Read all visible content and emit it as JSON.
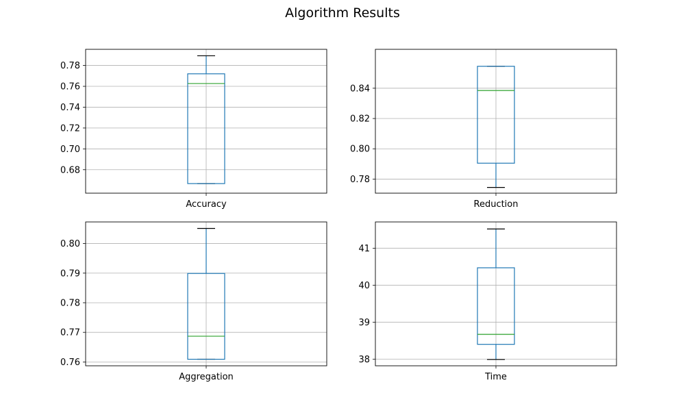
{
  "title": "Algorithm Results",
  "colors": {
    "box": "#1f77b4",
    "median": "#2ca02c",
    "whisker_cap": "#000000",
    "grid": "#b0b0b0",
    "frame": "#000000"
  },
  "chart_data": [
    {
      "type": "box",
      "category": "Accuracy",
      "whislo": 0.6667,
      "q1": 0.6667,
      "median": 0.7627,
      "q3": 0.772,
      "whishi": 0.7893,
      "ylim": [
        0.6575,
        0.7955
      ],
      "yticks": [
        0.68,
        0.7,
        0.72,
        0.74,
        0.76,
        0.78
      ],
      "yticklabels": [
        "0.68",
        "0.70",
        "0.72",
        "0.74",
        "0.76",
        "0.78"
      ],
      "grid": true
    },
    {
      "type": "box",
      "category": "Reduction",
      "whislo": 0.7745,
      "q1": 0.7905,
      "median": 0.8385,
      "q3": 0.8545,
      "whishi": 0.8545,
      "ylim": [
        0.7707,
        0.8657
      ],
      "yticks": [
        0.78,
        0.8,
        0.82,
        0.84
      ],
      "yticklabels": [
        "0.78",
        "0.80",
        "0.82",
        "0.84"
      ],
      "grid": true
    },
    {
      "type": "box",
      "category": "Aggregation",
      "whislo": 0.7609,
      "q1": 0.7609,
      "median": 0.7687,
      "q3": 0.7899,
      "whishi": 0.8051,
      "ylim": [
        0.7587,
        0.8073
      ],
      "yticks": [
        0.76,
        0.77,
        0.78,
        0.79,
        0.8
      ],
      "yticklabels": [
        "0.76",
        "0.77",
        "0.78",
        "0.79",
        "0.80"
      ],
      "grid": true
    },
    {
      "type": "box",
      "category": "Time",
      "whislo": 37.99,
      "q1": 38.4,
      "median": 38.67,
      "q3": 40.47,
      "whishi": 41.52,
      "ylim": [
        37.82,
        41.71
      ],
      "yticks": [
        38,
        39,
        40,
        41
      ],
      "yticklabels": [
        "38",
        "39",
        "40",
        "41"
      ],
      "grid": true
    }
  ]
}
